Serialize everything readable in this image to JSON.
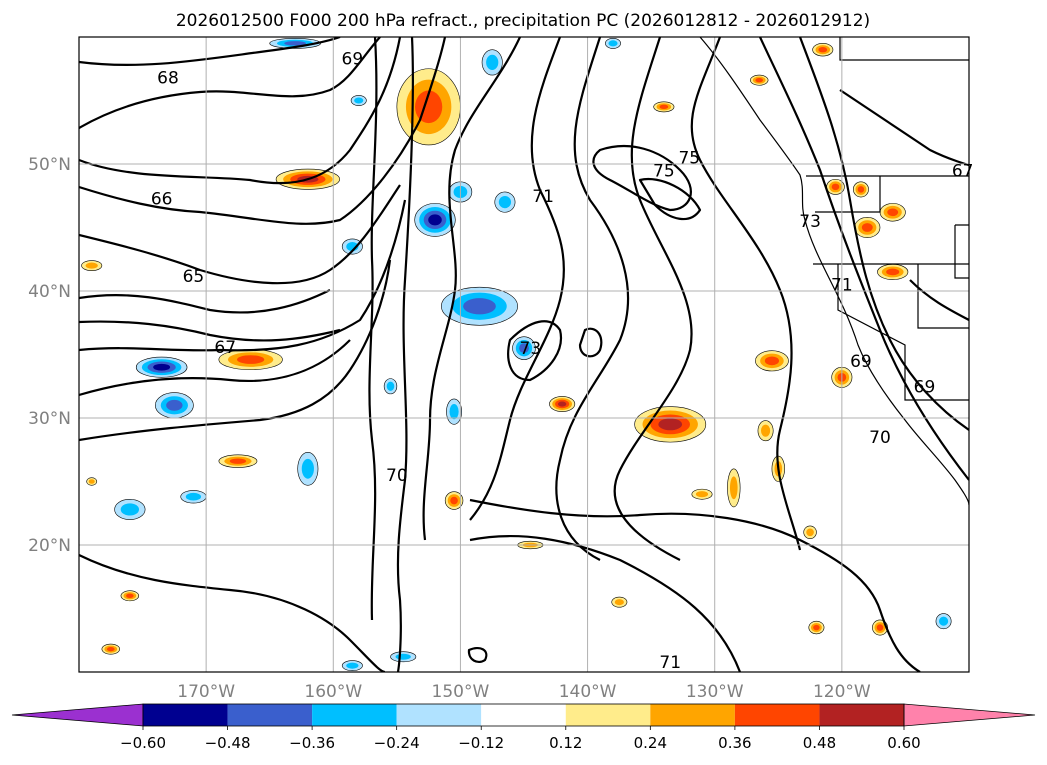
{
  "title": "2026012500 F000 200 hPa refract., precipitation PC (2026012812 - 2026012912)",
  "map": {
    "lon_range": [
      -180,
      -110
    ],
    "lat_range": [
      10,
      60
    ],
    "lat_labels": [
      {
        "lat": 50,
        "label": "50°N"
      },
      {
        "lat": 40,
        "label": "40°N"
      },
      {
        "lat": 30,
        "label": "30°N"
      },
      {
        "lat": 20,
        "label": "20°N"
      }
    ],
    "lon_labels": [
      {
        "lon": -170,
        "label": "170°W"
      },
      {
        "lon": -160,
        "label": "160°W"
      },
      {
        "lon": -150,
        "label": "150°W"
      },
      {
        "lon": -140,
        "label": "140°W"
      },
      {
        "lon": -130,
        "label": "130°W"
      },
      {
        "lon": -120,
        "label": "120°W"
      }
    ],
    "contour_labels": [
      {
        "text": "68",
        "lon": -173,
        "lat": 56.8
      },
      {
        "text": "69",
        "lon": -158.5,
        "lat": 58.3
      },
      {
        "text": "66",
        "lon": -173.5,
        "lat": 47.3
      },
      {
        "text": "65",
        "lon": -171,
        "lat": 41.2
      },
      {
        "text": "67",
        "lon": -168.5,
        "lat": 35.6
      },
      {
        "text": "71",
        "lon": -143.5,
        "lat": 47.5
      },
      {
        "text": "75",
        "lon": -134,
        "lat": 49.5
      },
      {
        "text": "75",
        "lon": -132,
        "lat": 50.5
      },
      {
        "text": "73",
        "lon": -144.5,
        "lat": 35.5
      },
      {
        "text": "70",
        "lon": -155,
        "lat": 25.5
      },
      {
        "text": "73",
        "lon": -122.5,
        "lat": 45.5
      },
      {
        "text": "71",
        "lon": -120,
        "lat": 40.5
      },
      {
        "text": "69",
        "lon": -118.5,
        "lat": 34.5
      },
      {
        "text": "69",
        "lon": -113.5,
        "lat": 32.5
      },
      {
        "text": "70",
        "lon": -117,
        "lat": 28.5
      },
      {
        "text": "67",
        "lon": -110.5,
        "lat": 49.5
      },
      {
        "text": "71",
        "lon": -133.5,
        "lat": 10.8
      }
    ]
  },
  "colorbar": {
    "levels": [
      -0.72,
      -0.6,
      -0.48,
      -0.36,
      -0.24,
      -0.12,
      0.12,
      0.24,
      0.36,
      0.48,
      0.6,
      0.72
    ],
    "tick_labels": [
      "−0.60",
      "−0.48",
      "−0.36",
      "−0.24",
      "−0.12",
      "0.12",
      "0.24",
      "0.36",
      "0.48",
      "0.60"
    ],
    "colors": [
      "#9b30d0",
      "#000090",
      "#3a5fcd",
      "#00bfff",
      "#b0e2ff",
      "#ffffff",
      "#ffec8b",
      "#ffa500",
      "#ff4500",
      "#b22222",
      "#ff82ab"
    ],
    "under_color": "#9b30d0",
    "over_color": "#ff82ab"
  },
  "precip_blobs": [
    {
      "lon": -152.5,
      "lat": 54.5,
      "rx": 2.5,
      "ry": 3.0,
      "value": 0.45
    },
    {
      "lon": -162.0,
      "lat": 48.8,
      "rx": 2.5,
      "ry": 0.8,
      "value": 0.5
    },
    {
      "lon": -152.0,
      "lat": 45.6,
      "rx": 1.6,
      "ry": 1.3,
      "value": -0.55
    },
    {
      "lon": -148.5,
      "lat": 38.8,
      "rx": 3.0,
      "ry": 1.5,
      "value": -0.4
    },
    {
      "lon": -166.5,
      "lat": 34.6,
      "rx": 2.5,
      "ry": 0.8,
      "value": 0.45
    },
    {
      "lon": -173.5,
      "lat": 34.0,
      "rx": 2.0,
      "ry": 0.8,
      "value": -0.5
    },
    {
      "lon": -172.5,
      "lat": 31.0,
      "rx": 1.5,
      "ry": 1.0,
      "value": -0.4
    },
    {
      "lon": -167.5,
      "lat": 26.6,
      "rx": 1.5,
      "ry": 0.5,
      "value": 0.4
    },
    {
      "lon": -162.0,
      "lat": 26.0,
      "rx": 0.8,
      "ry": 1.3,
      "value": -0.3
    },
    {
      "lon": -176.0,
      "lat": 22.8,
      "rx": 1.2,
      "ry": 0.8,
      "value": -0.35
    },
    {
      "lon": -171.0,
      "lat": 23.8,
      "rx": 1.0,
      "ry": 0.5,
      "value": -0.3
    },
    {
      "lon": -145.0,
      "lat": 35.5,
      "rx": 0.9,
      "ry": 0.9,
      "value": -0.45
    },
    {
      "lon": -142.0,
      "lat": 31.1,
      "rx": 1.0,
      "ry": 0.6,
      "value": 0.5
    },
    {
      "lon": -133.5,
      "lat": 29.5,
      "rx": 2.8,
      "ry": 1.4,
      "value": 0.5
    },
    {
      "lon": -125.5,
      "lat": 34.5,
      "rx": 1.3,
      "ry": 0.8,
      "value": 0.45
    },
    {
      "lon": -120.0,
      "lat": 33.2,
      "rx": 0.8,
      "ry": 0.8,
      "value": 0.45
    },
    {
      "lon": -118.0,
      "lat": 45.0,
      "rx": 1.0,
      "ry": 0.8,
      "value": 0.45
    },
    {
      "lon": -116.0,
      "lat": 46.2,
      "rx": 1.0,
      "ry": 0.7,
      "value": 0.45
    },
    {
      "lon": -118.5,
      "lat": 48.0,
      "rx": 0.6,
      "ry": 0.6,
      "value": 0.45
    },
    {
      "lon": -116.0,
      "lat": 41.5,
      "rx": 1.2,
      "ry": 0.6,
      "value": 0.45
    },
    {
      "lon": -146.5,
      "lat": 47.0,
      "rx": 0.8,
      "ry": 0.8,
      "value": -0.3
    },
    {
      "lon": -150.0,
      "lat": 47.8,
      "rx": 0.9,
      "ry": 0.8,
      "value": -0.3
    },
    {
      "lon": -158.5,
      "lat": 43.5,
      "rx": 0.8,
      "ry": 0.6,
      "value": -0.3
    },
    {
      "lon": -158.0,
      "lat": 55.0,
      "rx": 0.6,
      "ry": 0.4,
      "value": -0.25
    },
    {
      "lon": -163.0,
      "lat": 59.5,
      "rx": 2.0,
      "ry": 0.4,
      "value": -0.4
    },
    {
      "lon": -147.5,
      "lat": 58.0,
      "rx": 0.8,
      "ry": 1.0,
      "value": -0.3
    },
    {
      "lon": -126.5,
      "lat": 56.6,
      "rx": 0.7,
      "ry": 0.4,
      "value": 0.45
    },
    {
      "lon": -134.0,
      "lat": 54.5,
      "rx": 0.8,
      "ry": 0.4,
      "value": 0.45
    },
    {
      "lon": -121.5,
      "lat": 59.0,
      "rx": 0.8,
      "ry": 0.5,
      "value": 0.45
    },
    {
      "lon": -138.0,
      "lat": 59.5,
      "rx": 0.6,
      "ry": 0.4,
      "value": -0.3
    },
    {
      "lon": -120.5,
      "lat": 48.2,
      "rx": 0.7,
      "ry": 0.6,
      "value": 0.4
    },
    {
      "lon": -128.5,
      "lat": 24.5,
      "rx": 0.5,
      "ry": 1.5,
      "value": 0.35
    },
    {
      "lon": -125.0,
      "lat": 26.0,
      "rx": 0.5,
      "ry": 1.0,
      "value": 0.35
    },
    {
      "lon": -126.0,
      "lat": 29.0,
      "rx": 0.6,
      "ry": 0.8,
      "value": 0.35
    },
    {
      "lon": -131.0,
      "lat": 24.0,
      "rx": 0.8,
      "ry": 0.4,
      "value": 0.35
    },
    {
      "lon": -150.5,
      "lat": 23.5,
      "rx": 0.7,
      "ry": 0.7,
      "value": 0.4
    },
    {
      "lon": -144.5,
      "lat": 20.0,
      "rx": 1.0,
      "ry": 0.3,
      "value": 0.3
    },
    {
      "lon": -137.5,
      "lat": 15.5,
      "rx": 0.6,
      "ry": 0.4,
      "value": 0.35
    },
    {
      "lon": -122.0,
      "lat": 13.5,
      "rx": 0.6,
      "ry": 0.5,
      "value": 0.4
    },
    {
      "lon": -117.0,
      "lat": 13.5,
      "rx": 0.6,
      "ry": 0.6,
      "value": 0.45
    },
    {
      "lon": -112.0,
      "lat": 14.0,
      "rx": 0.6,
      "ry": 0.6,
      "value": -0.35
    },
    {
      "lon": -176.0,
      "lat": 16.0,
      "rx": 0.7,
      "ry": 0.4,
      "value": 0.4
    },
    {
      "lon": -177.5,
      "lat": 11.8,
      "rx": 0.7,
      "ry": 0.4,
      "value": 0.4
    },
    {
      "lon": -154.5,
      "lat": 11.2,
      "rx": 1.0,
      "ry": 0.4,
      "value": -0.35
    },
    {
      "lon": -158.5,
      "lat": 10.5,
      "rx": 0.8,
      "ry": 0.4,
      "value": -0.35
    },
    {
      "lon": -122.5,
      "lat": 21.0,
      "rx": 0.5,
      "ry": 0.5,
      "value": 0.35
    },
    {
      "lon": -155.5,
      "lat": 32.5,
      "rx": 0.5,
      "ry": 0.6,
      "value": -0.3
    },
    {
      "lon": -150.5,
      "lat": 30.5,
      "rx": 0.6,
      "ry": 1.0,
      "value": -0.3
    },
    {
      "lon": -179.0,
      "lat": 42.0,
      "rx": 0.8,
      "ry": 0.4,
      "value": 0.35
    },
    {
      "lon": -179.0,
      "lat": 25.0,
      "rx": 0.4,
      "ry": 0.3,
      "value": 0.3
    }
  ]
}
